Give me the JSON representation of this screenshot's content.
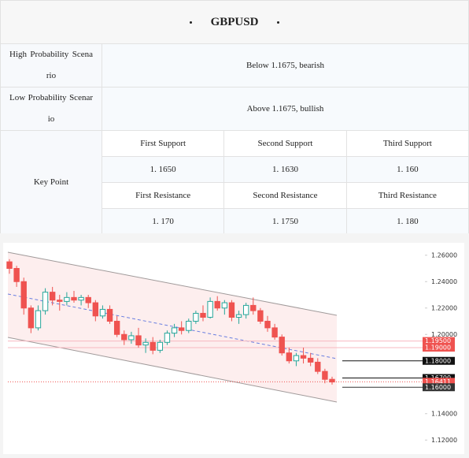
{
  "header": {
    "title": "GBPUSD"
  },
  "table": {
    "scenarios": [
      {
        "label": "High Probability Scenario",
        "value": "Below 1.1675, bearish"
      },
      {
        "label": "Low Probability Scenario",
        "value": "Above 1.1675, bullish"
      }
    ],
    "key_point": {
      "label": "Key Point",
      "supports": [
        {
          "name": "First Support",
          "value": "1. 1650"
        },
        {
          "name": "Second Support",
          "value": "1. 1630"
        },
        {
          "name": "Third Support",
          "value": "1. 160"
        }
      ],
      "resistances": [
        {
          "name": "First Resistance",
          "value": "1. 170"
        },
        {
          "name": "Second Resistance",
          "value": "1. 1750"
        },
        {
          "name": "Third Resistance",
          "value": "1. 180"
        }
      ]
    }
  },
  "chart_data": {
    "type": "candlestick",
    "ylim": [
      1.11,
      1.27
    ],
    "yticks": [
      {
        "value": 1.26,
        "label": "1.26000"
      },
      {
        "value": 1.24,
        "label": "1.24000"
      },
      {
        "value": 1.22,
        "label": "1.22000"
      },
      {
        "value": 1.2,
        "label": "1.20000"
      },
      {
        "value": 1.14,
        "label": "1.14000"
      },
      {
        "value": 1.12,
        "label": "1.12000"
      }
    ],
    "up_color": "#26a69a",
    "down_color": "#ef5350",
    "candles": [
      [
        1.255,
        1.257,
        1.246,
        1.25
      ],
      [
        1.25,
        1.252,
        1.236,
        1.24
      ],
      [
        1.24,
        1.243,
        1.215,
        1.22
      ],
      [
        1.22,
        1.222,
        1.201,
        1.205
      ],
      [
        1.205,
        1.222,
        1.203,
        1.218
      ],
      [
        1.218,
        1.235,
        1.215,
        1.232
      ],
      [
        1.232,
        1.236,
        1.222,
        1.226
      ],
      [
        1.226,
        1.23,
        1.218,
        1.225
      ],
      [
        1.225,
        1.232,
        1.222,
        1.228
      ],
      [
        1.228,
        1.233,
        1.224,
        1.226
      ],
      [
        1.226,
        1.23,
        1.222,
        1.228
      ],
      [
        1.228,
        1.23,
        1.22,
        1.224
      ],
      [
        1.224,
        1.226,
        1.21,
        1.214
      ],
      [
        1.214,
        1.222,
        1.212,
        1.219
      ],
      [
        1.219,
        1.222,
        1.208,
        1.21
      ],
      [
        1.21,
        1.214,
        1.198,
        1.2
      ],
      [
        1.2,
        1.203,
        1.192,
        1.196
      ],
      [
        1.196,
        1.202,
        1.193,
        1.199
      ],
      [
        1.199,
        1.205,
        1.19,
        1.192
      ],
      [
        1.192,
        1.197,
        1.186,
        1.194
      ],
      [
        1.194,
        1.198,
        1.185,
        1.188
      ],
      [
        1.188,
        1.196,
        1.186,
        1.194
      ],
      [
        1.194,
        1.203,
        1.192,
        1.201
      ],
      [
        1.201,
        1.208,
        1.198,
        1.205
      ],
      [
        1.205,
        1.21,
        1.2,
        1.203
      ],
      [
        1.203,
        1.212,
        1.201,
        1.21
      ],
      [
        1.21,
        1.218,
        1.208,
        1.216
      ],
      [
        1.216,
        1.222,
        1.21,
        1.213
      ],
      [
        1.213,
        1.228,
        1.212,
        1.225
      ],
      [
        1.225,
        1.229,
        1.218,
        1.22
      ],
      [
        1.22,
        1.226,
        1.215,
        1.224
      ],
      [
        1.224,
        1.226,
        1.21,
        1.213
      ],
      [
        1.213,
        1.218,
        1.208,
        1.215
      ],
      [
        1.215,
        1.224,
        1.212,
        1.222
      ],
      [
        1.222,
        1.228,
        1.215,
        1.218
      ],
      [
        1.218,
        1.22,
        1.208,
        1.21
      ],
      [
        1.21,
        1.214,
        1.202,
        1.205
      ],
      [
        1.205,
        1.208,
        1.196,
        1.198
      ],
      [
        1.198,
        1.2,
        1.184,
        1.186
      ],
      [
        1.186,
        1.19,
        1.178,
        1.18
      ],
      [
        1.18,
        1.186,
        1.176,
        1.184
      ],
      [
        1.184,
        1.19,
        1.178,
        1.182
      ],
      [
        1.182,
        1.186,
        1.176,
        1.179
      ],
      [
        1.179,
        1.182,
        1.17,
        1.172
      ],
      [
        1.172,
        1.174,
        1.163,
        1.166
      ],
      [
        1.166,
        1.168,
        1.162,
        1.164
      ]
    ],
    "levels": [
      {
        "value": 1.195,
        "label": "1.19500",
        "color": "#ef5350",
        "line_color": "#f7b8c0"
      },
      {
        "value": 1.19,
        "label": "1.19000",
        "color": "#ef5350",
        "line_color": "#f7b8c0"
      },
      {
        "value": 1.18,
        "label": "1.18000",
        "color": "#111111",
        "line_color": "#111111"
      },
      {
        "value": 1.167,
        "label": "1.16700",
        "color": "#111111",
        "line_color": "#111111"
      },
      {
        "value": 1.16411,
        "label": "1.16411",
        "color": "#ef5350",
        "line_color": "#ef5350",
        "line_style": "dotted"
      },
      {
        "value": 1.16,
        "label": "1.16000",
        "color": "#333333",
        "line_color": "#333333"
      }
    ]
  }
}
